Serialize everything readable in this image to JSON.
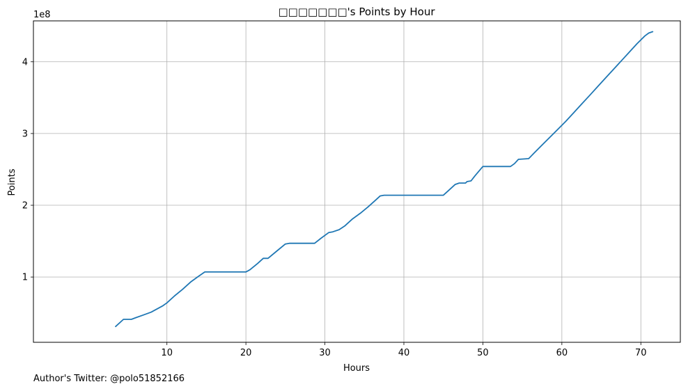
{
  "chart_data": {
    "type": "line",
    "title": "□□□□□□□'s Points by Hour",
    "xlabel": "Hours",
    "ylabel": "Points",
    "y_scale_label": "1e8",
    "grid": true,
    "xlim": [
      -6.9,
      75.0
    ],
    "ylim": [
      0.09,
      4.57
    ],
    "x_ticks": [
      10,
      20,
      30,
      40,
      50,
      60,
      70
    ],
    "x_tick_labels": [
      "10",
      "20",
      "30",
      "40",
      "50",
      "60",
      "70"
    ],
    "y_ticks": [
      1,
      2,
      3,
      4
    ],
    "y_tick_labels": [
      "1",
      "2",
      "3",
      "4"
    ],
    "series": [
      {
        "name": "Points",
        "color": "#1f77b4",
        "points": [
          [
            3.5,
            0.31
          ],
          [
            4.5,
            0.41
          ],
          [
            5.5,
            0.41
          ],
          [
            6.0,
            0.43
          ],
          [
            7.0,
            0.47
          ],
          [
            8.0,
            0.51
          ],
          [
            9.5,
            0.6
          ],
          [
            10.0,
            0.64
          ],
          [
            11.0,
            0.74
          ],
          [
            12.0,
            0.83
          ],
          [
            13.0,
            0.93
          ],
          [
            14.0,
            1.01
          ],
          [
            14.8,
            1.07
          ],
          [
            20.0,
            1.07
          ],
          [
            20.5,
            1.1
          ],
          [
            21.5,
            1.19
          ],
          [
            22.2,
            1.26
          ],
          [
            22.8,
            1.26
          ],
          [
            24.0,
            1.37
          ],
          [
            25.0,
            1.46
          ],
          [
            25.5,
            1.47
          ],
          [
            28.7,
            1.47
          ],
          [
            29.5,
            1.54
          ],
          [
            30.5,
            1.62
          ],
          [
            31.0,
            1.63
          ],
          [
            31.8,
            1.66
          ],
          [
            32.5,
            1.71
          ],
          [
            33.5,
            1.81
          ],
          [
            34.5,
            1.89
          ],
          [
            35.5,
            1.98
          ],
          [
            36.5,
            2.08
          ],
          [
            37.0,
            2.13
          ],
          [
            37.5,
            2.14
          ],
          [
            45.0,
            2.14
          ],
          [
            45.8,
            2.22
          ],
          [
            46.5,
            2.29
          ],
          [
            47.0,
            2.31
          ],
          [
            47.8,
            2.31
          ],
          [
            48.0,
            2.33
          ],
          [
            48.5,
            2.34
          ],
          [
            49.0,
            2.41
          ],
          [
            50.0,
            2.54
          ],
          [
            53.5,
            2.54
          ],
          [
            54.0,
            2.58
          ],
          [
            54.5,
            2.64
          ],
          [
            55.8,
            2.65
          ],
          [
            56.5,
            2.73
          ],
          [
            57.5,
            2.84
          ],
          [
            58.5,
            2.95
          ],
          [
            59.5,
            3.06
          ],
          [
            60.5,
            3.17
          ],
          [
            61.5,
            3.29
          ],
          [
            62.5,
            3.41
          ],
          [
            63.5,
            3.53
          ],
          [
            64.5,
            3.65
          ],
          [
            65.5,
            3.77
          ],
          [
            66.5,
            3.89
          ],
          [
            67.5,
            4.01
          ],
          [
            68.5,
            4.13
          ],
          [
            69.5,
            4.25
          ],
          [
            70.5,
            4.36
          ],
          [
            71.0,
            4.4
          ],
          [
            71.5,
            4.42
          ]
        ]
      }
    ]
  },
  "footer": {
    "text": "Author's Twitter: @polo51852166"
  }
}
